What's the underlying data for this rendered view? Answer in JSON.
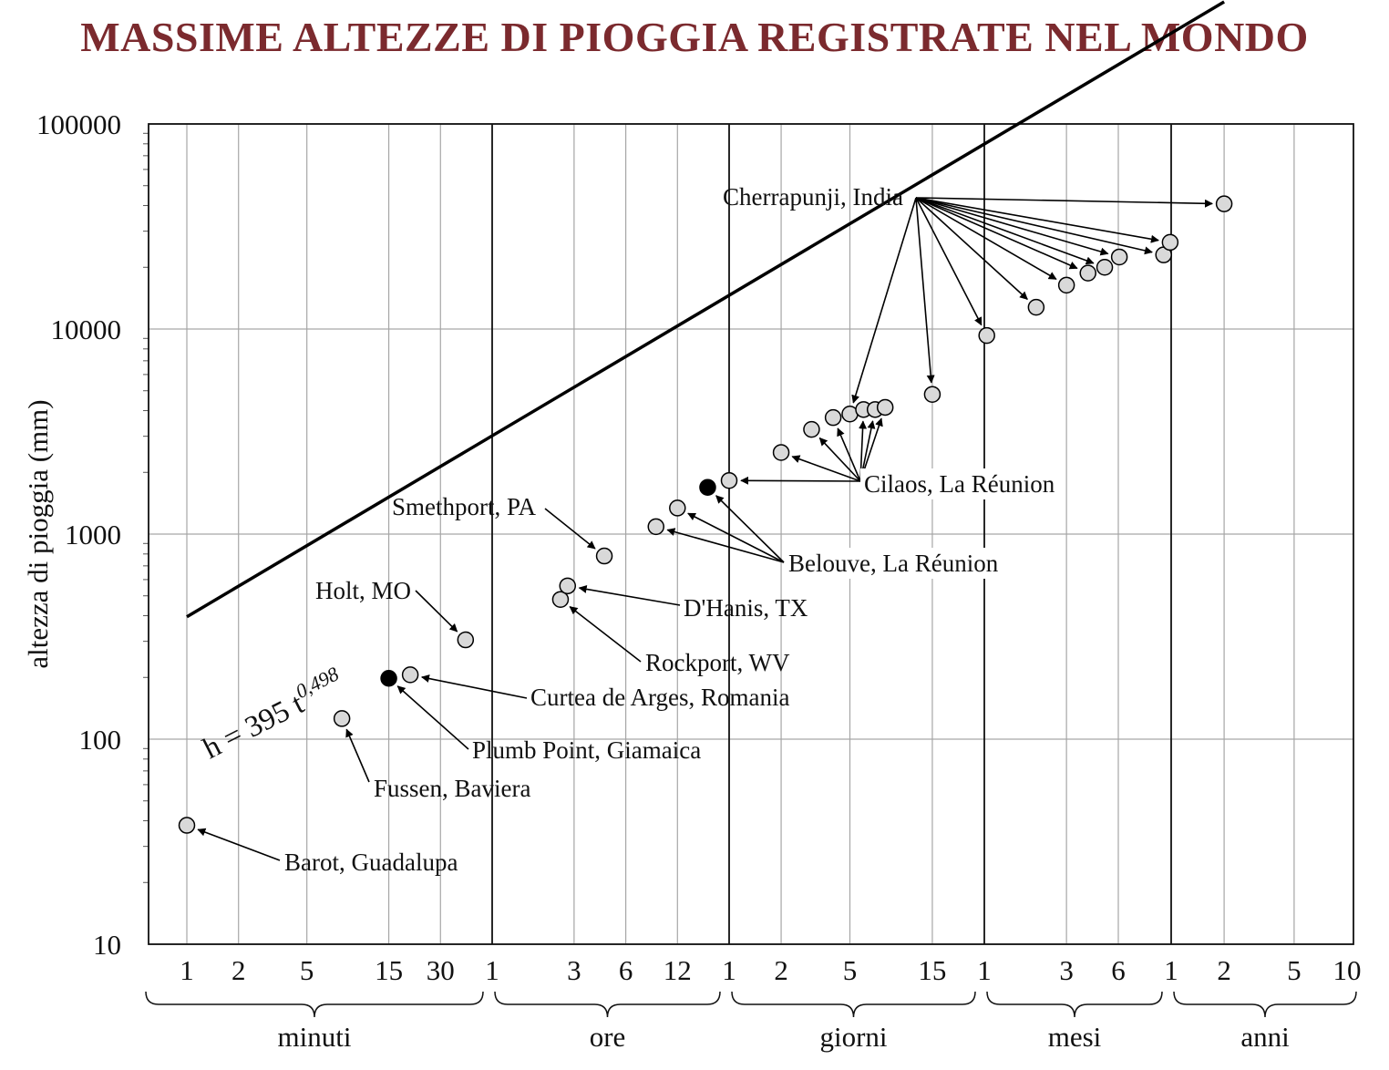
{
  "colors": {
    "title": "#7b2a2e",
    "grid": "#a6a6a6",
    "axis": "#111111",
    "point_fill": "#d9d9d9",
    "point_record_fill": "#000000"
  },
  "chart_data": {
    "type": "scatter",
    "title": "MASSIME ALTEZZE DI PIOGGIA REGISTRATE NEL MONDO",
    "ylabel": "altezza di pioggia (mm)",
    "y_scale": "log",
    "ylim": [
      10,
      100000
    ],
    "y_ticks": [
      "10",
      "100",
      "1000",
      "10000",
      "100000"
    ],
    "x_scale": "log",
    "x_unit": "minutes",
    "x_groups": [
      {
        "label": "minuti",
        "ticks": [
          "1",
          "2",
          "5",
          "15",
          "30"
        ]
      },
      {
        "label": "ore",
        "ticks": [
          "1",
          "3",
          "6",
          "12"
        ]
      },
      {
        "label": "giorni",
        "ticks": [
          "1",
          "2",
          "5",
          "15"
        ]
      },
      {
        "label": "mesi",
        "ticks": [
          "1",
          "3",
          "6"
        ]
      },
      {
        "label": "anni",
        "ticks": [
          "1",
          "2",
          "5",
          "10"
        ]
      }
    ],
    "grid": true,
    "fit_line": {
      "label": "h = 395 t",
      "exponent": "0,498",
      "coefficient": 395,
      "power": 0.498,
      "x_range": [
        1,
        1051200
      ]
    },
    "points": [
      {
        "x": 1,
        "y": 38,
        "site": "Barot, Guadalupa",
        "record": false
      },
      {
        "x": 8,
        "y": 126,
        "site": "Fussen, Baviera",
        "record": false
      },
      {
        "x": 15,
        "y": 198,
        "site": "Plumb Point, Giamaica",
        "record": true
      },
      {
        "x": 20,
        "y": 206,
        "site": "Curtea de Arges, Romania",
        "record": false
      },
      {
        "x": 42,
        "y": 305,
        "site": "Holt, MO",
        "record": false
      },
      {
        "x": 150,
        "y": 480,
        "site": "Rockport, WV",
        "record": false
      },
      {
        "x": 165,
        "y": 559,
        "site": "D'Hanis, TX",
        "record": false
      },
      {
        "x": 270,
        "y": 782,
        "site": "Smethport, PA",
        "record": false
      },
      {
        "x": 540,
        "y": 1087,
        "site": "Belouve, La Réunion",
        "record": false
      },
      {
        "x": 720,
        "y": 1340,
        "site": "Belouve, La Réunion",
        "record": false
      },
      {
        "x": 1080,
        "y": 1690,
        "site": "Belouve, La Réunion",
        "record": true
      },
      {
        "x": 1440,
        "y": 1825,
        "site": "Cilaos, La Réunion",
        "record": false
      },
      {
        "x": 2880,
        "y": 2500,
        "site": "Cilaos, La Réunion",
        "record": false
      },
      {
        "x": 4320,
        "y": 3240,
        "site": "Cilaos, La Réunion",
        "record": false
      },
      {
        "x": 5760,
        "y": 3700,
        "site": "Cilaos, La Réunion",
        "record": false
      },
      {
        "x": 7200,
        "y": 3850,
        "site": "Cherrapunji, India",
        "record": false
      },
      {
        "x": 8640,
        "y": 4050,
        "site": "Cilaos, La Réunion",
        "record": false
      },
      {
        "x": 10080,
        "y": 4050,
        "site": "Cilaos, La Réunion",
        "record": false
      },
      {
        "x": 11520,
        "y": 4150,
        "site": "Cilaos, La Réunion",
        "record": false
      },
      {
        "x": 21600,
        "y": 4800,
        "site": "Cherrapunji, India",
        "record": false
      },
      {
        "x": 44640,
        "y": 9300,
        "site": "Cherrapunji, India",
        "record": false
      },
      {
        "x": 86400,
        "y": 12770,
        "site": "Cherrapunji, India",
        "record": false
      },
      {
        "x": 129600,
        "y": 16370,
        "site": "Cherrapunji, India",
        "record": false
      },
      {
        "x": 172800,
        "y": 18740,
        "site": "Cherrapunji, India",
        "record": false
      },
      {
        "x": 216000,
        "y": 20000,
        "site": "Cherrapunji, India",
        "record": false
      },
      {
        "x": 262800,
        "y": 22450,
        "site": "Cherrapunji, India",
        "record": false
      },
      {
        "x": 475200,
        "y": 22990,
        "site": "Cherrapunji, India",
        "record": false
      },
      {
        "x": 518400,
        "y": 26460,
        "site": "Cherrapunji, India",
        "record": false
      },
      {
        "x": 1051200,
        "y": 40770,
        "site": "Cherrapunji, India",
        "record": false
      }
    ],
    "annotations": [
      {
        "label": "Cherrapunji, India",
        "targets": [
          7200,
          21600,
          44640,
          86400,
          129600,
          172800,
          216000,
          262800,
          475200,
          518400,
          1051200
        ]
      },
      {
        "label": "Cilaos, La Réunion",
        "targets": [
          1440,
          2880,
          4320,
          5760,
          8640,
          10080,
          11520
        ]
      },
      {
        "label": "Belouve, La Réunion",
        "targets": [
          540,
          720,
          1080
        ]
      },
      {
        "label": "Smethport, PA",
        "targets": [
          270
        ]
      },
      {
        "label": "Holt, MO",
        "targets": [
          42
        ]
      },
      {
        "label": "D'Hanis, TX",
        "targets": [
          165
        ]
      },
      {
        "label": "Rockport, WV",
        "targets": [
          150
        ]
      },
      {
        "label": "Curtea de Arges,  Romania",
        "targets": [
          20
        ]
      },
      {
        "label": "Plumb Point, Giamaica",
        "targets": [
          15
        ]
      },
      {
        "label": "Fussen, Baviera",
        "targets": [
          8
        ]
      },
      {
        "label": "Barot, Guadalupa",
        "targets": [
          1
        ]
      }
    ]
  }
}
